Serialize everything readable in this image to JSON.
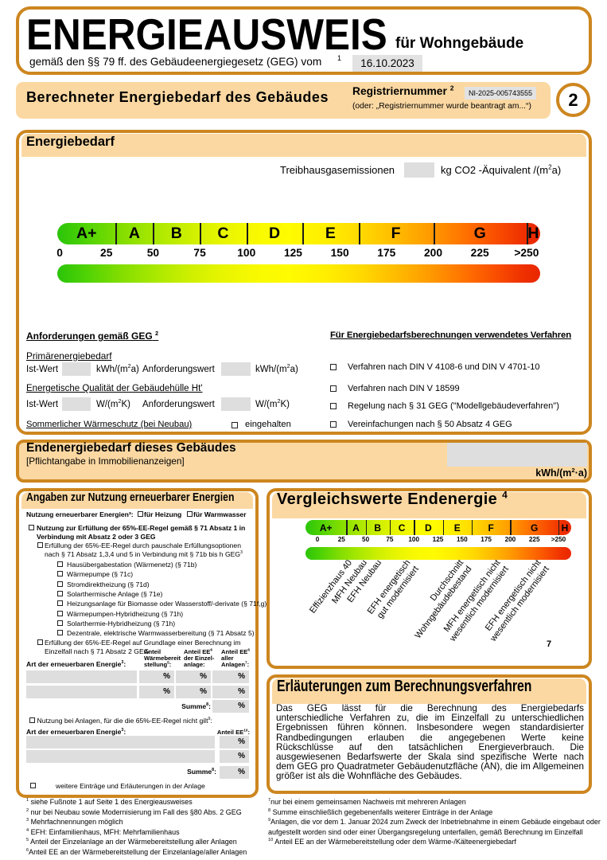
{
  "header": {
    "title": "ENERGIEAUSWEIS",
    "subtitle": "für Wohngebäude",
    "law_text": "gemäß den §§ 79 ff. des Gebäudeenergiegesetz (GEG) vom",
    "law_footnote": "1",
    "date_value": "16.10.2023"
  },
  "page_badge": "2",
  "subheader": {
    "title": "Berechneter Energiebedarf des Gebäudes",
    "registry_label": "Registriernummer",
    "registry_footnote": "2",
    "registry_value": "NI-2025-005743555",
    "registry_alt": "(oder: „Registriernummer wurde beantragt am...“)"
  },
  "energiebedarf": {
    "section_title": "Energiebedarf",
    "emissions_label": "Treibhausgasemissionen",
    "emissions_value": "",
    "emissions_unit": "kg CO2 -Äquivalent /(m²a)"
  },
  "scale": {
    "letters": [
      "A+",
      "A",
      "B",
      "C",
      "D",
      "E",
      "F",
      "G",
      "H"
    ],
    "band_boundaries": [
      30,
      50,
      75,
      100,
      130,
      160,
      200,
      250
    ],
    "ticks": [
      {
        "value": 0,
        "label": "0"
      },
      {
        "value": 25,
        "label": "25"
      },
      {
        "value": 50,
        "label": "50"
      },
      {
        "value": 75,
        "label": "75"
      },
      {
        "value": 100,
        "label": "100"
      },
      {
        "value": 125,
        "label": "125"
      },
      {
        "value": 150,
        "label": "150"
      },
      {
        "value": 175,
        "label": "175"
      },
      {
        "value": 200,
        "label": "200"
      },
      {
        "value": 225,
        "label": "225"
      },
      {
        "value": 250,
        "label": ">250"
      }
    ]
  },
  "anforderungen": {
    "heading": "Anforderungen gemäß GEG",
    "heading_footnote": "2",
    "primaer_label": "Primärenergiebedarf",
    "ist_label": "Ist-Wert",
    "ist_value": "",
    "anforderungs_label": "Anforderungswert",
    "anforderungs_value": "",
    "kwh_unit": "kWh/(m²a)",
    "huelle_label": "Energetische Qualität der Gebäudehülle Ht'",
    "huelle_ist_value": "",
    "huelle_anf_value": "",
    "w_unit": "W/(m²K)",
    "sommer_label": "Sommerlicher Wärmeschutz (bei Neubau)",
    "eingehalten_label": "eingehalten"
  },
  "verfahren": {
    "heading": "Für Energiebedarfsberechnungen verwendetes Verfahren",
    "items": [
      "Verfahren nach DIN V 4108-6 und DIN V 4701-10",
      "Verfahren nach DIN V 18599",
      "Regelung nach § 31 GEG (\"Modellgebäudeverfahren\")",
      "Vereinfachungen nach § 50 Absatz 4 GEG"
    ]
  },
  "endenergie": {
    "title": "Endenergiebedarf dieses Gebäudes",
    "subtitle": "[Pflichtangabe in Immobilienanzeigen]",
    "value": "",
    "unit": "kWh/(m²·a)"
  },
  "erneuerbare": {
    "section_title": "Angaben zur Nutzung erneuerbarer Energien",
    "usage_label": "Nutzung erneuerbarer Energien³:",
    "usage_options": [
      "für Heizung",
      "für Warmwasser"
    ],
    "rule_check1": "Nutzung zur Erfüllung der 65%-EE-Regel gemäß § 71 Absatz 1 in Verbindung mit Absatz 2 oder 3 GEG",
    "rule_check2": "Erfüllung der 65%-EE-Regel durch pauschale Erfüllungsoptionen nach § 71 Absatz 1,3,4 und 5 in Verbindung mit § 71b bis h GEG³",
    "options": [
      "Hausübergabestation (Wärmenetz) (§ 71b)",
      "Wärmepumpe (§ 71c)",
      "Stromdirektheizung (§ 71d)",
      "Solarthermische Anlage (§ 71e)",
      "Heizungsanlage für Biomasse oder Wasserstoff/-derivate (§ 71f,g)",
      "Wärmepumpen-Hybridheizung (§ 71h)",
      "Solarthermie-Hybridheizung (§ 71h)",
      "Dezentrale, elektrische Warmwasserbereitung (§ 71 Absatz 5)"
    ],
    "rule_check3": "Erfüllung der 65%-EE-Regel auf Grundlage einer Berechnung im Einzelfall nach § 71 Absatz 2 GEG",
    "table1": {
      "row_label": "Art der erneuerbaren Energie³:",
      "col_headers": [
        "Anteil\nWärmebereit\nstellung⁵:",
        "Anteil EE⁶\nder Einzel-\nanlage:",
        "Anteil EE⁶\naller\nAnlagen⁷:"
      ],
      "percent": "%",
      "sum_label": "Summe⁸:"
    },
    "nicht_gilt_check": "Nutzung bei Anlagen, für die die 65%-EE-Regel nicht gilt⁹:",
    "table2": {
      "row_label": "Art der erneuerbaren Energie³:",
      "col_header": "Anteil EE¹⁰:",
      "percent": "%",
      "sum_label": "Summe⁸:"
    },
    "weitere_check": "weitere Einträge und Erläuterungen in der Anlage"
  },
  "vergleichswerte": {
    "section_title": "Vergleichswerte Endenergie",
    "section_footnote": "4",
    "labels": [
      {
        "value": 30,
        "lines": [
          "Effizienzhaus 40"
        ]
      },
      {
        "value": 46,
        "lines": [
          "MFH Neubau"
        ]
      },
      {
        "value": 61,
        "lines": [
          "EFH Neubau"
        ]
      },
      {
        "value": 91,
        "lines": [
          "EFH energetisch",
          "gut modernisiert"
        ]
      },
      {
        "value": 146,
        "lines": [
          "Durchschnitt",
          "Wohngebäudebestand"
        ]
      },
      {
        "value": 184,
        "lines": [
          "MFH energetisch nicht",
          "wesentlich modernisiert"
        ]
      },
      {
        "value": 226,
        "lines": [
          "EFH energetisch nicht",
          "wesentlich modernisiert"
        ]
      }
    ],
    "corner_note": "7"
  },
  "erlaeuterungen": {
    "section_title": "Erläuterungen zum Berechnungsverfahren",
    "body_lines": [
      "Das GEG lässt für die Berechnung des Energiebedarfs",
      "unterschiedliche Verfahren zu, die im Einzelfall zu unterschiedlichen",
      "Ergebnissen führen können. Insbesondere wegen standardisierter",
      "Randbedingungen erlauben die angegebenen Werte keine",
      "Rückschlüsse auf den tatsächlichen Energieverbrauch. Die",
      "ausgewiesenen Bedarfswerte der Skala sind spezifische Werte nach",
      "dem GEG pro Quadratmeter Gebäudenutzfläche (AN), die im Allgemeinen",
      "größer ist als die Wohnfläche des Gebäudes."
    ]
  },
  "footnotes_left": [
    "¹ siehe Fußnote 1 auf Seite 1 des Energieausweises",
    "² nur bei Neubau sowie Modernisierung im Fall des §80 Abs. 2 GEG",
    "³ Mehrfachnennungen möglich",
    "⁴ EFH: Einfamilienhaus, MFH: Mehrfamilienhaus",
    "⁵ Anteil der Einzelanlage an der Wärmebereitstellung aller Anlagen",
    "⁶Anteil EE an der Wärmebereitstellung der Einzelanlage/aller Anlagen"
  ],
  "footnotes_right": [
    "⁷nur bei einem gemeinsamen Nachweis mit mehreren Anlagen",
    "⁸ Summe einschließlich gegebenenfalls weiterer Einträge in der Anlage",
    "⁹Anlagen, die vor dem 1. Januar 2024 zum Zweck der Inbetriebnahme in einem Gebäude eingebaut oder aufgestellt worden sind oder einer Übergangsregelung unterfallen, gemäß Berechnung im Einzelfall",
    "¹⁰ Anteil EE an der Wärmebereitstellung oder dem Wärme-/Kälteenergiebedarf"
  ]
}
